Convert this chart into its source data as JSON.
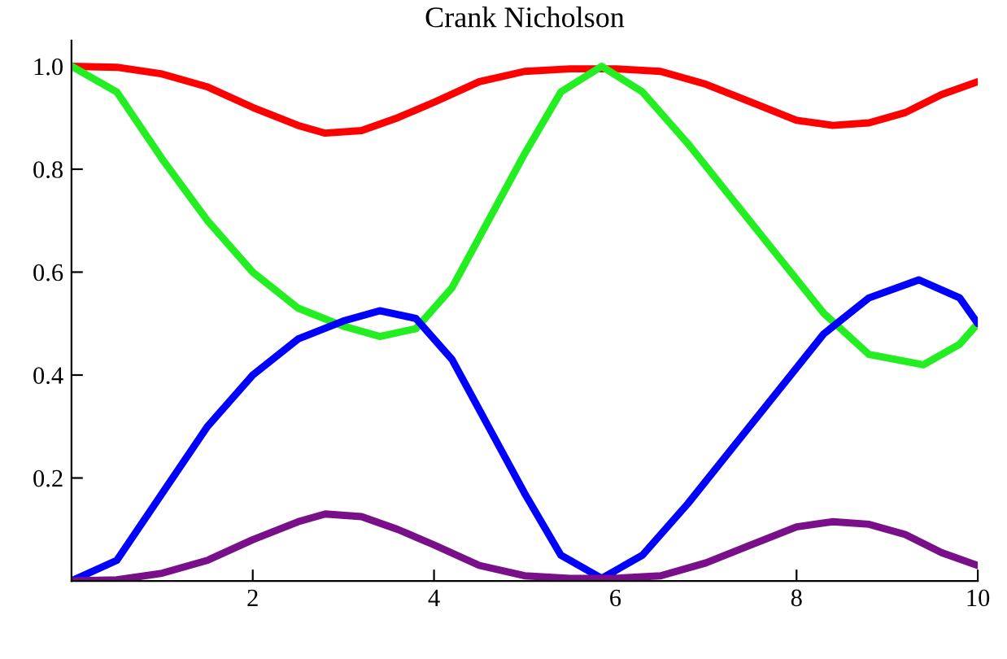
{
  "chart_data": {
    "type": "line",
    "title": "Crank Nicholson",
    "xlim": [
      0,
      10
    ],
    "ylim": [
      0,
      1.05
    ],
    "xticks": [
      2,
      4,
      6,
      8,
      10
    ],
    "yticks": [
      0.2,
      0.4,
      0.6,
      0.8,
      {
        "value": 1.0,
        "label": "1.0"
      }
    ],
    "grid": false,
    "legend": false,
    "marker": "none",
    "line_style": "solid",
    "series": [
      {
        "color": "#ff0000",
        "x": [
          0,
          0.5,
          1,
          1.5,
          2,
          2.5,
          2.8,
          3.2,
          3.6,
          4,
          4.5,
          5,
          5.5,
          6,
          6.5,
          7,
          7.5,
          8,
          8.4,
          8.8,
          9.2,
          9.6,
          10
        ],
        "values": [
          1.0,
          0.998,
          0.985,
          0.96,
          0.92,
          0.885,
          0.87,
          0.875,
          0.9,
          0.93,
          0.97,
          0.99,
          0.995,
          0.995,
          0.99,
          0.965,
          0.93,
          0.895,
          0.885,
          0.89,
          0.91,
          0.945,
          0.97
        ]
      },
      {
        "color": "#22ee22",
        "x": [
          0,
          0.5,
          1,
          1.5,
          2,
          2.5,
          3,
          3.4,
          3.8,
          4.2,
          4.6,
          5,
          5.4,
          5.85,
          6.3,
          6.8,
          7.3,
          7.8,
          8.3,
          8.8,
          9.4,
          9.8,
          10
        ],
        "values": [
          1.0,
          0.95,
          0.82,
          0.7,
          0.6,
          0.53,
          0.495,
          0.475,
          0.49,
          0.57,
          0.7,
          0.83,
          0.95,
          1.0,
          0.95,
          0.85,
          0.74,
          0.63,
          0.52,
          0.44,
          0.42,
          0.46,
          0.5
        ]
      },
      {
        "color": "#0000ff",
        "x": [
          0,
          0.5,
          1,
          1.5,
          2,
          2.5,
          3,
          3.4,
          3.8,
          4.2,
          4.6,
          5,
          5.4,
          5.85,
          6.3,
          6.8,
          7.3,
          7.8,
          8.3,
          8.8,
          9.35,
          9.8,
          10
        ],
        "values": [
          0,
          0.04,
          0.17,
          0.3,
          0.4,
          0.47,
          0.505,
          0.525,
          0.51,
          0.43,
          0.3,
          0.17,
          0.05,
          0.005,
          0.05,
          0.15,
          0.26,
          0.37,
          0.48,
          0.55,
          0.585,
          0.55,
          0.5
        ]
      },
      {
        "color": "#7a0f8a",
        "x": [
          0,
          0.5,
          1,
          1.5,
          2,
          2.5,
          2.8,
          3.2,
          3.6,
          4,
          4.5,
          5,
          5.5,
          6,
          6.5,
          7,
          7.5,
          8,
          8.4,
          8.8,
          9.2,
          9.6,
          10
        ],
        "values": [
          0,
          0.002,
          0.015,
          0.04,
          0.08,
          0.115,
          0.13,
          0.125,
          0.1,
          0.07,
          0.03,
          0.01,
          0.005,
          0.005,
          0.01,
          0.035,
          0.07,
          0.105,
          0.115,
          0.11,
          0.09,
          0.055,
          0.03
        ]
      }
    ]
  }
}
